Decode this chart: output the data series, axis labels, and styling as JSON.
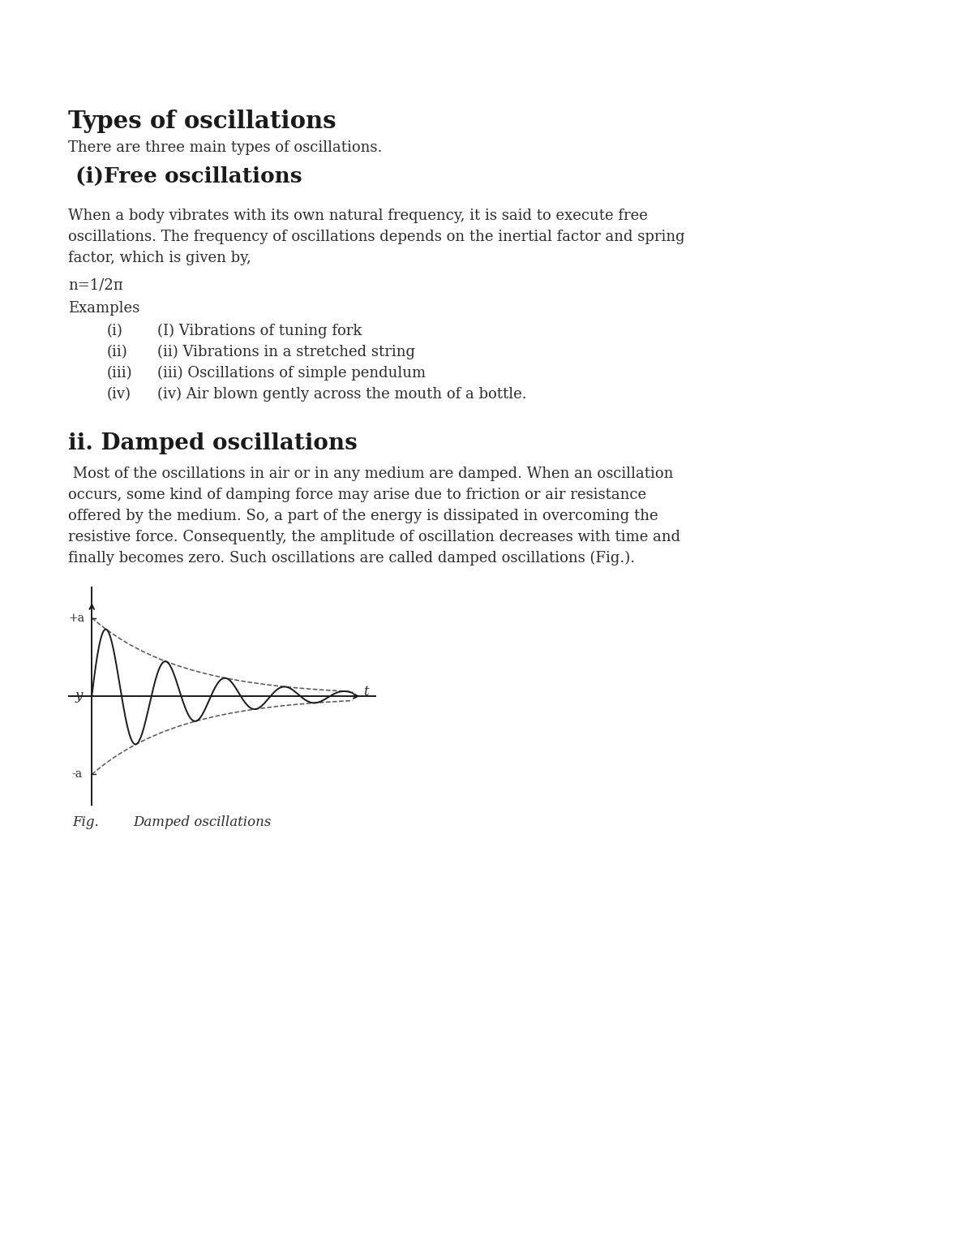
{
  "bg_color": "#ffffff",
  "title": "Types of oscillations",
  "subtitle": "There are three main types of oscillations.",
  "section1_heading": " (i)Free oscillations",
  "section1_body_line1": "When a body vibrates with its own natural frequency, it is said to execute free",
  "section1_body_line2": "oscillations. The frequency of oscillations depends on the inertial factor and spring",
  "section1_body_line3": "factor, which is given by,",
  "formula": "n=1/2π",
  "examples_label": "Examples",
  "examples": [
    [
      "(i)",
      "(I) Vibrations of tuning fork"
    ],
    [
      "(ii)",
      "(ii) Vibrations in a stretched string"
    ],
    [
      "(iii)",
      "(iii) Oscillations of simple pendulum"
    ],
    [
      "(iv)",
      "(iv) Air blown gently across the mouth of a bottle."
    ]
  ],
  "section2_heading": "ii. Damped oscillations",
  "section2_body_lines": [
    " Most of the oscillations in air or in any medium are damped. When an oscillation",
    "occurs, some kind of damping force may arise due to friction or air resistance",
    "offered by the medium. So, a part of the energy is dissipated in overcoming the",
    "resistive force. Consequently, the amplitude of oscillation decreases with time and",
    "finally becomes zero. Such oscillations are called damped oscillations (Fig.)."
  ],
  "fig_label": "Fig.",
  "fig_caption_text": "Damped oscillations",
  "text_color": "#2c2c2c",
  "heading_color": "#1a1a1a",
  "title_fontsize": 21,
  "subtitle_fontsize": 13,
  "section1_heading_fontsize": 19,
  "body_fontsize": 13,
  "section2_heading_fontsize": 20,
  "formula_fontsize": 13,
  "examples_fontsize": 13,
  "caption_fontsize": 12
}
